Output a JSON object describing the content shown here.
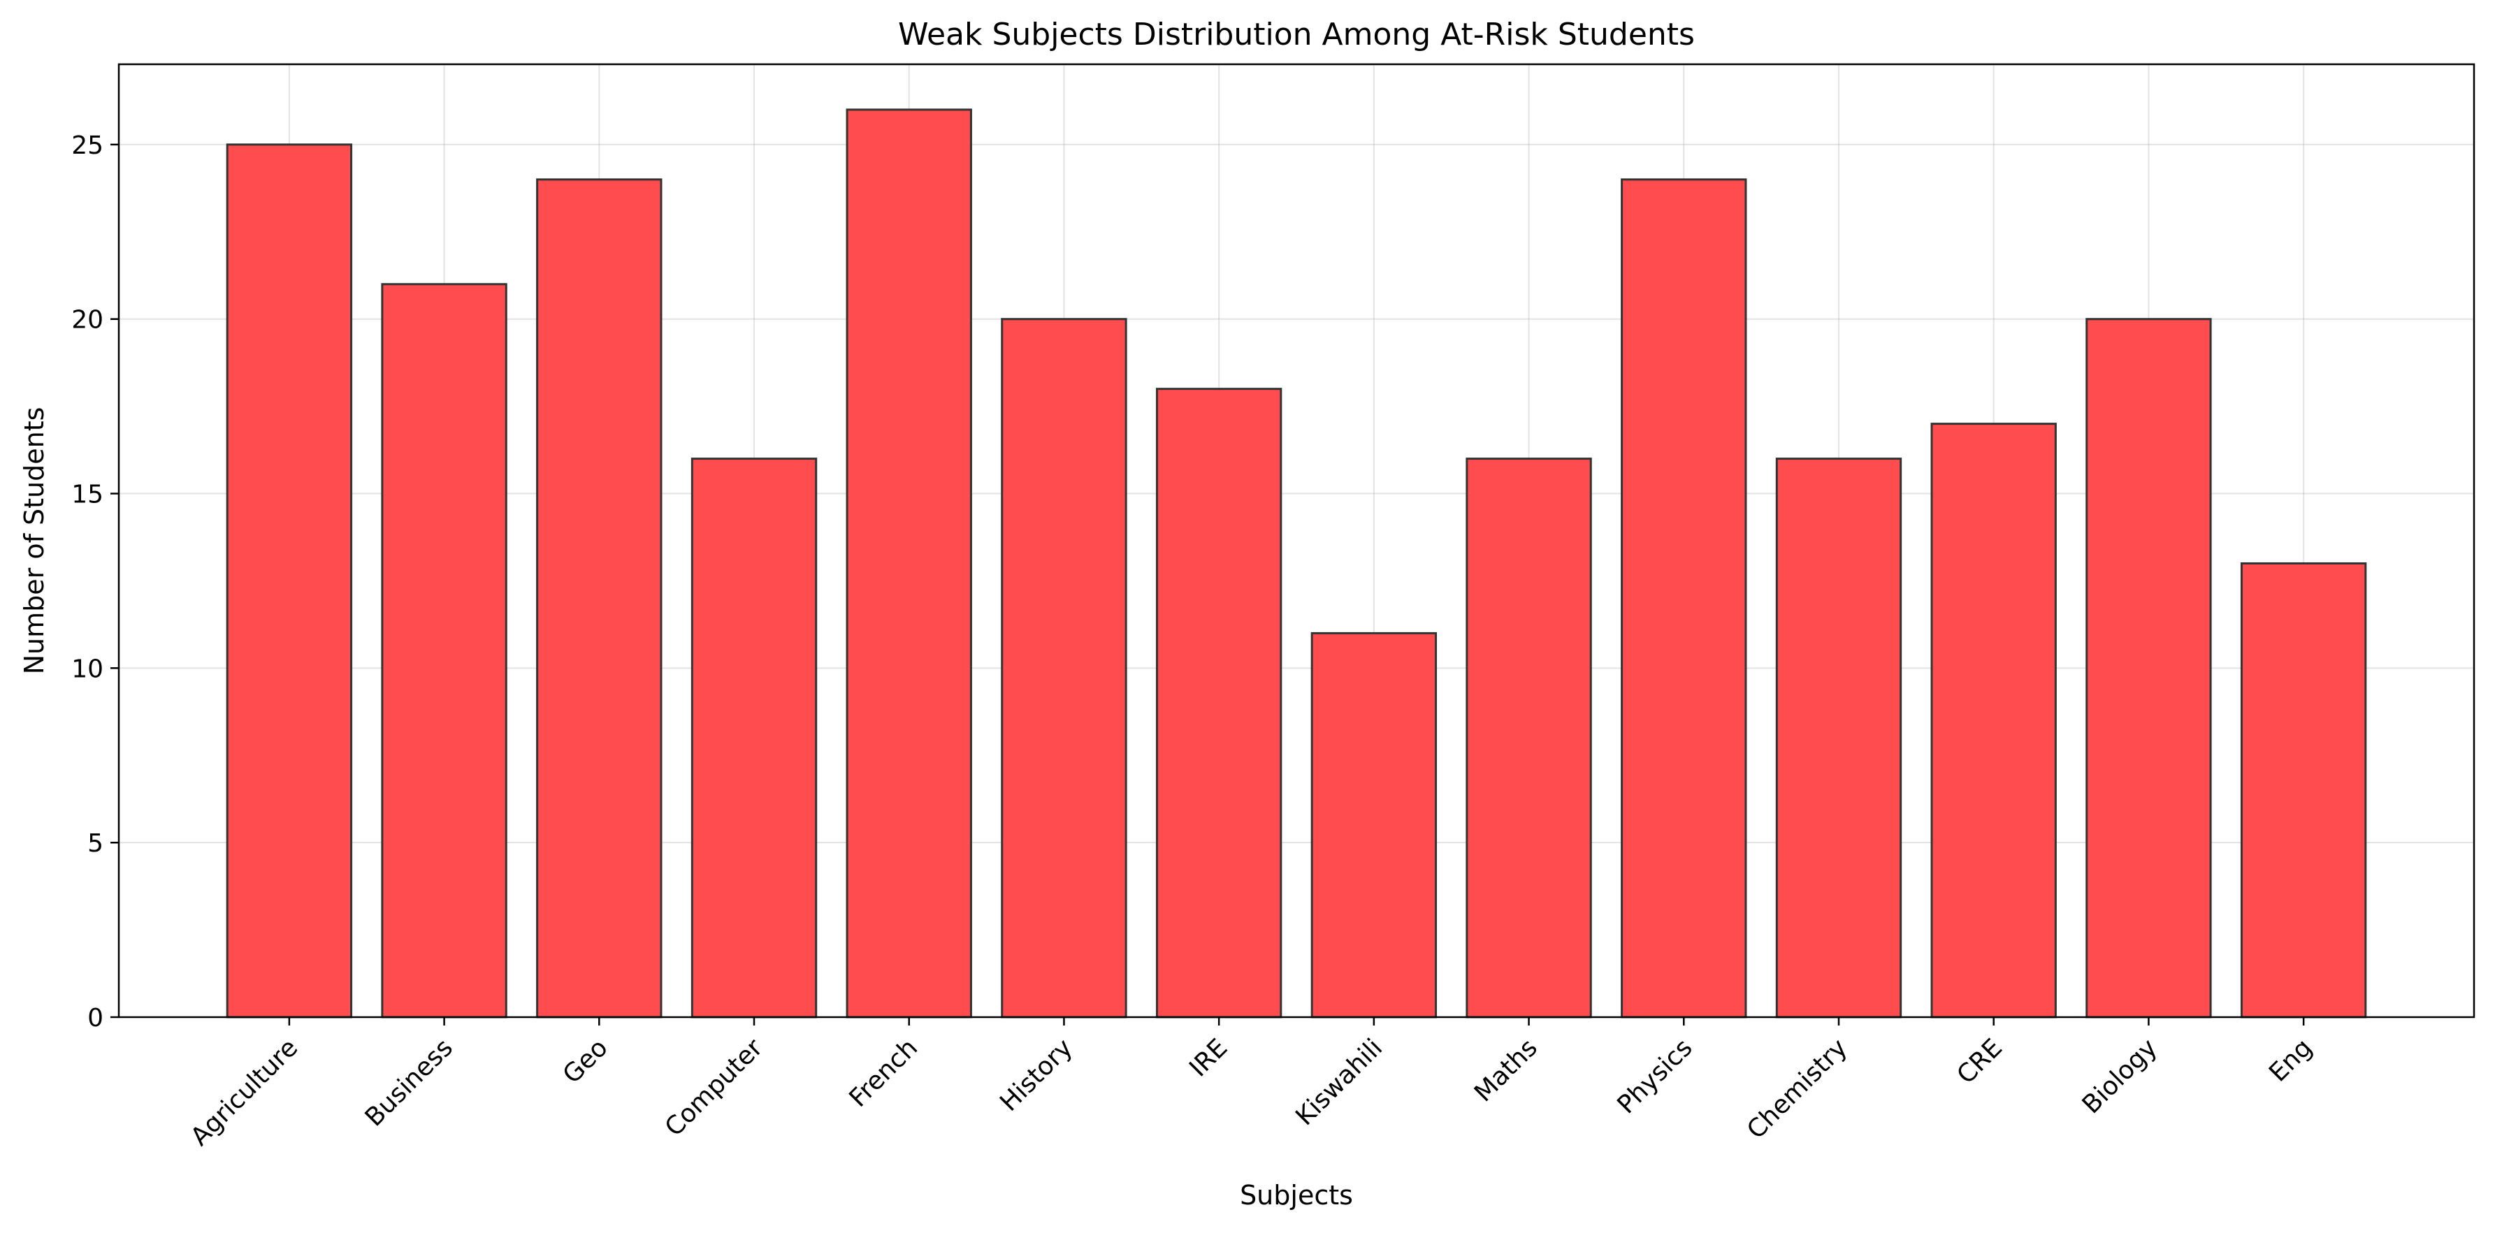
{
  "chart_data": {
    "type": "bar",
    "title": "Weak Subjects Distribution Among At-Risk Students",
    "xlabel": "Subjects",
    "ylabel": "Number of Students",
    "categories": [
      "Agriculture",
      "Business",
      "Geo",
      "Computer",
      "French",
      "History",
      "IRE",
      "Kiswahili",
      "Maths",
      "Physics",
      "Chemistry",
      "CRE",
      "Biology",
      "Eng"
    ],
    "values": [
      25,
      21,
      24,
      16,
      26,
      20,
      18,
      11,
      16,
      24,
      16,
      17,
      20,
      13
    ],
    "ylim": [
      0,
      27.3
    ],
    "yticks": [
      0,
      5,
      10,
      15,
      20,
      25
    ],
    "grid": true,
    "bar_color": "#ff4d4f",
    "edge_color": "#333333",
    "legend": "none"
  }
}
